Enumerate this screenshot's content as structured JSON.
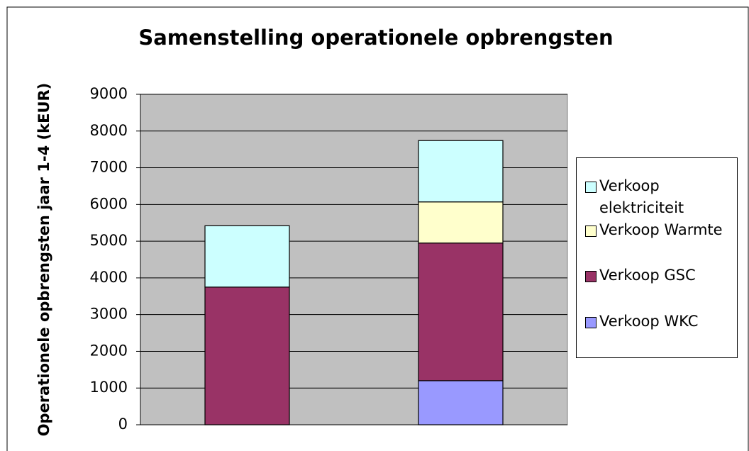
{
  "chart_data": {
    "type": "stacked_bar",
    "title": "Samenstelling operationele opbrengsten",
    "ylabel": "Operationele opbrengsten jaar 1-4 (kEUR)",
    "categories": [
      null,
      null
    ],
    "series": [
      {
        "name": "Verkoop WKC",
        "color": "#9999ff",
        "values": [
          0,
          1200
        ]
      },
      {
        "name": "Verkoop GSC",
        "color": "#993366",
        "values": [
          3750,
          3750
        ]
      },
      {
        "name": "Verkoop Warmte",
        "color": "#ffffcc",
        "values": [
          0,
          1120
        ]
      },
      {
        "name": "Verkoop elektriciteit",
        "color": "#ccffff",
        "values": [
          1670,
          1670
        ]
      }
    ],
    "ylim": [
      0,
      9000
    ],
    "yticks": [
      0,
      1000,
      2000,
      3000,
      4000,
      5000,
      6000,
      7000,
      8000,
      9000
    ],
    "grid": true,
    "legend": "right",
    "plot_background": "#c0c0c0"
  }
}
